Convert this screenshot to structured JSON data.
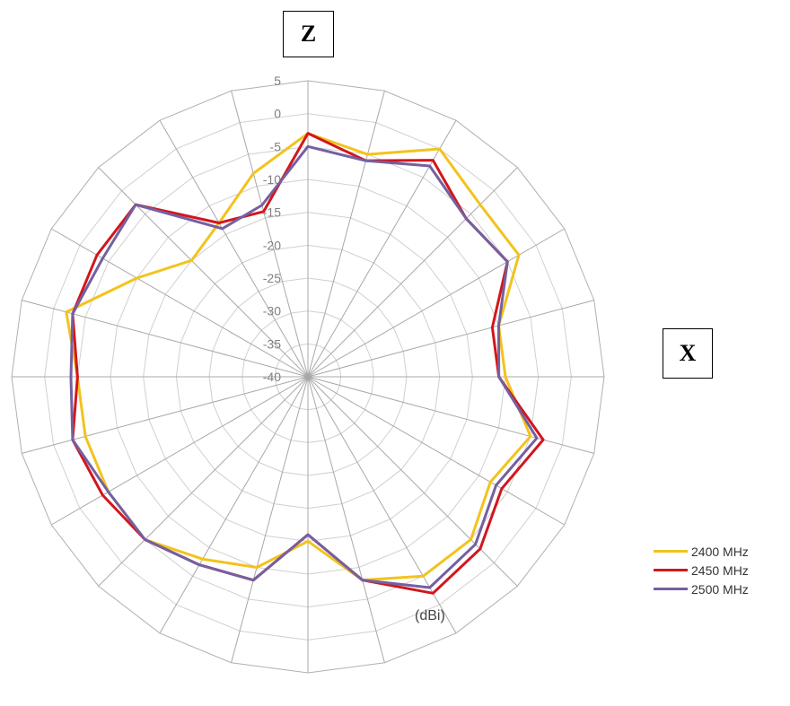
{
  "chart_data": {
    "type": "radar",
    "axis_labels": [
      "Z",
      "X"
    ],
    "unit": "(dBi)",
    "rlim": [
      -40,
      5
    ],
    "r_ticks": [
      "5",
      "0",
      "-5",
      "-10",
      "-15",
      "-20",
      "-25",
      "-30",
      "-35",
      "-40"
    ],
    "angle_step_deg": 15,
    "grid": true,
    "legend_position": "bottom-right",
    "series": [
      {
        "name": "2400 MHz",
        "color": "#f2c31c",
        "values": [
          -3,
          -5,
          0,
          -3,
          -3,
          -10,
          -10,
          -5,
          -8,
          -5,
          -5,
          -8,
          -15,
          -10,
          -8,
          -5,
          -5,
          -5,
          -5,
          -2,
          -10,
          -15,
          -13,
          -8
        ]
      },
      {
        "name": "2450 MHz",
        "color": "#d2161d",
        "values": [
          -3,
          -6,
          -2,
          -6,
          -5,
          -11,
          -11,
          -3,
          -6,
          -3,
          -2,
          -8,
          -16,
          -8,
          -7,
          -5,
          -4,
          -3,
          -5,
          -3,
          -3,
          -3,
          -13,
          -14
        ]
      },
      {
        "name": "2500 MHz",
        "color": "#7460a0",
        "values": [
          -5,
          -6,
          -3,
          -6,
          -5,
          -10,
          -11,
          -4,
          -7,
          -4,
          -3,
          -8,
          -16,
          -8,
          -7,
          -5,
          -5,
          -3,
          -4,
          -3,
          -4,
          -3,
          -14,
          -13
        ]
      }
    ]
  }
}
